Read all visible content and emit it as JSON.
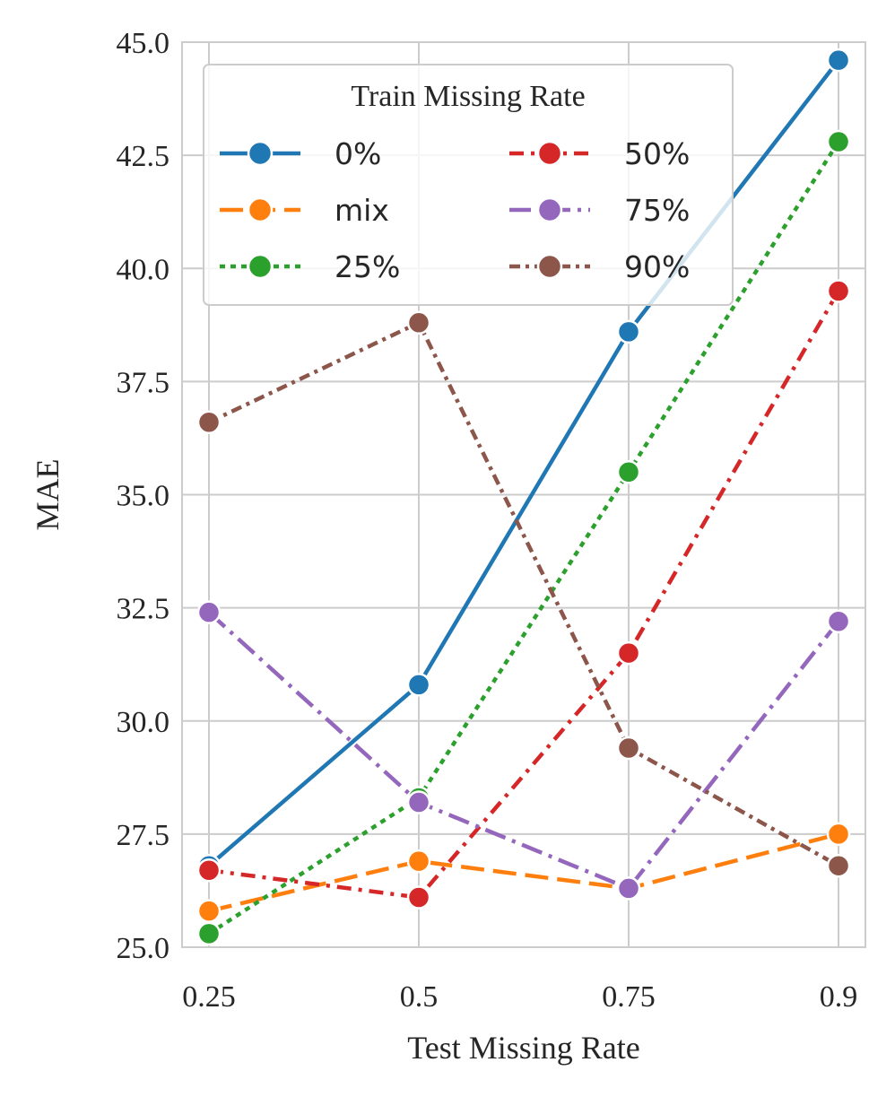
{
  "chart_data": {
    "type": "line",
    "xlabel": "Test Missing Rate",
    "ylabel": "MAE",
    "categories": [
      "0.25",
      "0.5",
      "0.75",
      "0.9"
    ],
    "ylim": [
      25.0,
      45.0
    ],
    "yticks": [
      "25.0",
      "27.5",
      "30.0",
      "32.5",
      "35.0",
      "37.5",
      "40.0",
      "42.5",
      "45.0"
    ],
    "grid": true,
    "legend": {
      "title": "Train Missing Rate",
      "placement": "top-left",
      "columns": 2
    },
    "series": [
      {
        "name": "0%",
        "color": "#1f77b4",
        "dash": "solid",
        "values": [
          26.8,
          30.8,
          38.6,
          44.6
        ]
      },
      {
        "name": "mix",
        "color": "#ff7f0e",
        "dash": "dashed",
        "values": [
          25.8,
          26.9,
          26.3,
          27.5
        ]
      },
      {
        "name": "25%",
        "color": "#2ca02c",
        "dash": "dotted",
        "values": [
          25.3,
          28.3,
          35.5,
          42.8
        ]
      },
      {
        "name": "50%",
        "color": "#d62728",
        "dash": "dashdot",
        "values": [
          26.7,
          26.1,
          31.5,
          39.5
        ]
      },
      {
        "name": "75%",
        "color": "#9467bd",
        "dash": "dashdot2",
        "values": [
          32.4,
          28.2,
          26.3,
          32.2
        ]
      },
      {
        "name": "90%",
        "color": "#8c564b",
        "dash": "dashdot3",
        "values": [
          36.6,
          38.8,
          29.4,
          26.8
        ]
      }
    ]
  }
}
